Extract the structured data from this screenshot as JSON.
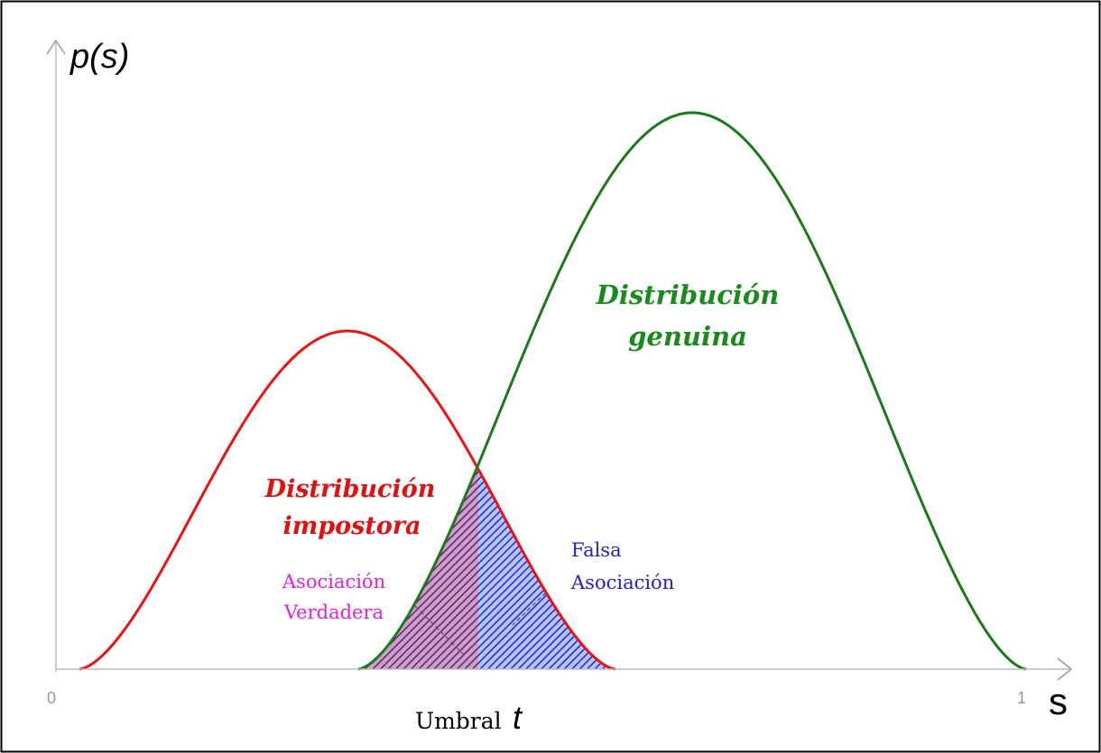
{
  "axes": {
    "y_label": "p(s)",
    "x_label": "s",
    "x_start": "0",
    "x_end": "1"
  },
  "curves": [
    {
      "label_lines": [
        "Distribución",
        "genuina"
      ]
    },
    {
      "label_lines": [
        "Distribución",
        "impostora"
      ]
    }
  ],
  "regions": [
    {
      "label_lines": [
        "Asociación",
        "Verdadera"
      ]
    },
    {
      "label_lines": [
        "Falsa",
        "Asociación"
      ]
    }
  ],
  "threshold": {
    "label": "Umbral",
    "symbol": "t"
  }
}
